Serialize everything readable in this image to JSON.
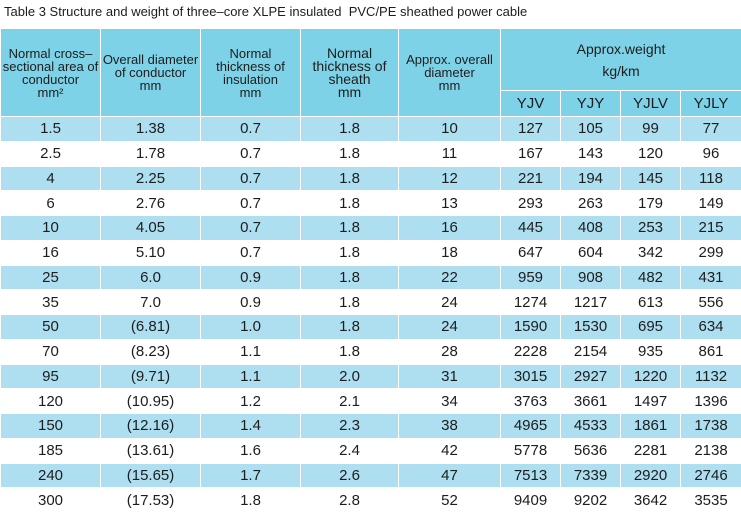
{
  "title": "Table 3 Structure and weight of three–core XLPE insulated  PVC/PE sheathed power cable",
  "table": {
    "header": [
      {
        "label": "Normal cross–sectional area of conductor",
        "unit": "mm²"
      },
      {
        "label": "Overall diameter of conductor",
        "unit": "mm"
      },
      {
        "label": "Normal thickness of insulation",
        "unit": "mm"
      },
      {
        "label": "Normal thickness of sheath",
        "unit": "mm"
      },
      {
        "label": "Approx. overall diameter",
        "unit": "mm"
      }
    ],
    "weight_header": {
      "label": "Approx.weight",
      "unit": "kg/km",
      "columns": [
        "YJV",
        "YJY",
        "YJLV",
        "YJLY"
      ]
    },
    "rows": [
      [
        "1.5",
        "1.38",
        "0.7",
        "1.8",
        "10",
        "127",
        "105",
        "99",
        "77"
      ],
      [
        "2.5",
        "1.78",
        "0.7",
        "1.8",
        "11",
        "167",
        "143",
        "120",
        "96"
      ],
      [
        "4",
        "2.25",
        "0.7",
        "1.8",
        "12",
        "221",
        "194",
        "145",
        "118"
      ],
      [
        "6",
        "2.76",
        "0.7",
        "1.8",
        "13",
        "293",
        "263",
        "179",
        "149"
      ],
      [
        "10",
        "4.05",
        "0.7",
        "1.8",
        "16",
        "445",
        "408",
        "253",
        "215"
      ],
      [
        "16",
        "5.10",
        "0.7",
        "1.8",
        "18",
        "647",
        "604",
        "342",
        "299"
      ],
      [
        "25",
        "6.0",
        "0.9",
        "1.8",
        "22",
        "959",
        "908",
        "482",
        "431"
      ],
      [
        "35",
        "7.0",
        "0.9",
        "1.8",
        "24",
        "1274",
        "1217",
        "613",
        "556"
      ],
      [
        "50",
        "(6.81)",
        "1.0",
        "1.8",
        "24",
        "1590",
        "1530",
        "695",
        "634"
      ],
      [
        "70",
        "(8.23)",
        "1.1",
        "1.8",
        "28",
        "2228",
        "2154",
        "935",
        "861"
      ],
      [
        "95",
        "(9.71)",
        "1.1",
        "2.0",
        "31",
        "3015",
        "2927",
        "1220",
        "1132"
      ],
      [
        "120",
        "(10.95)",
        "1.2",
        "2.1",
        "34",
        "3763",
        "3661",
        "1497",
        "1396"
      ],
      [
        "150",
        "(12.16)",
        "1.4",
        "2.3",
        "38",
        "4965",
        "4533",
        "1861",
        "1738"
      ],
      [
        "185",
        "(13.61)",
        "1.6",
        "2.4",
        "42",
        "5778",
        "5636",
        "2281",
        "2138"
      ],
      [
        "240",
        "(15.65)",
        "1.7",
        "2.6",
        "47",
        "7513",
        "7339",
        "2920",
        "2746"
      ],
      [
        "300",
        "(17.53)",
        "1.8",
        "2.8",
        "52",
        "9409",
        "9202",
        "3642",
        "3535"
      ]
    ]
  }
}
